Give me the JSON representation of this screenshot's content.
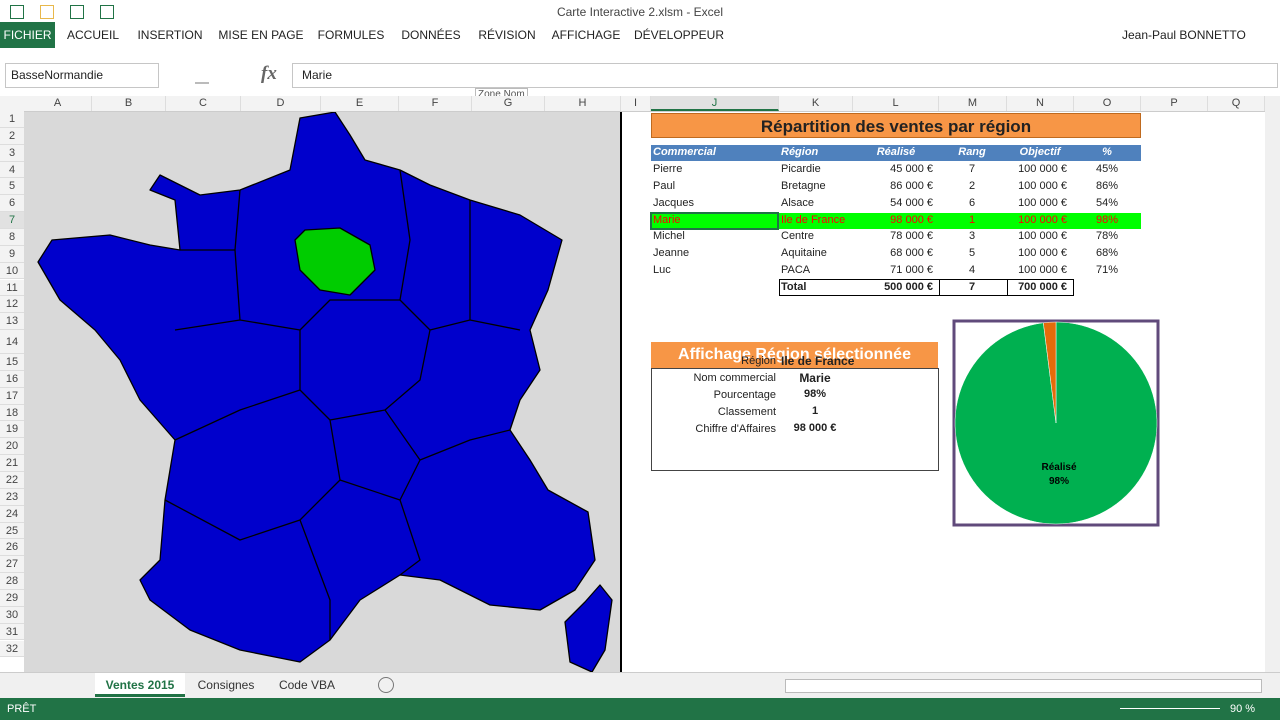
{
  "window": {
    "title": "Carte Interactive 2.xlsm - Excel",
    "user": "Jean-Paul BONNETTO"
  },
  "ribbon_tabs": [
    "FICHIER",
    "ACCUEIL",
    "INSERTION",
    "MISE EN PAGE",
    "FORMULES",
    "DONNÉES",
    "RÉVISION",
    "AFFICHAGE",
    "DÉVELOPPEUR"
  ],
  "formula_bar": {
    "name_box": "BasseNormandie",
    "fx": "fx",
    "content": "Marie",
    "tooltip": "Zone Nom"
  },
  "columns": [
    "A",
    "B",
    "C",
    "D",
    "E",
    "F",
    "G",
    "H",
    "I",
    "J",
    "K",
    "L",
    "M",
    "N",
    "O",
    "P",
    "Q"
  ],
  "rows": [
    1,
    2,
    3,
    4,
    5,
    6,
    7,
    8,
    9,
    10,
    11,
    12,
    13,
    14,
    15,
    16,
    17,
    18,
    19,
    20,
    21,
    22,
    23,
    24,
    25,
    26,
    27,
    28,
    29,
    30,
    31,
    32
  ],
  "sales_table": {
    "title": "Répartition des ventes par région",
    "header": [
      "Commercial",
      "Région",
      "Réalisé",
      "Rang",
      "Objectif",
      "%"
    ],
    "rows": [
      [
        "Pierre",
        "Picardie",
        "45 000 €",
        "7",
        "100 000 €",
        "45%"
      ],
      [
        "Paul",
        "Bretagne",
        "86 000 €",
        "2",
        "100 000 €",
        "86%"
      ],
      [
        "Jacques",
        "Alsace",
        "54 000 €",
        "6",
        "100 000 €",
        "54%"
      ],
      [
        "Marie",
        "Ile de France",
        "98 000 €",
        "1",
        "100 000 €",
        "98%"
      ],
      [
        "Michel",
        "Centre",
        "78 000 €",
        "3",
        "100 000 €",
        "78%"
      ],
      [
        "Jeanne",
        "Aquitaine",
        "68 000 €",
        "5",
        "100 000 €",
        "68%"
      ],
      [
        "Luc",
        "PACA",
        "71 000 €",
        "4",
        "100 000 €",
        "71%"
      ]
    ],
    "total": [
      "Total",
      "500 000 €",
      "7",
      "700 000 €"
    ]
  },
  "summary": {
    "title": "Affichage Région sélectionnée",
    "rows": [
      [
        "Région",
        "Ile de France"
      ],
      [
        "Nom commercial",
        "Marie"
      ],
      [
        "Pourcentage",
        "98%"
      ],
      [
        "Classement",
        "1"
      ],
      [
        "Chiffre d'Affaires",
        "98 000 €"
      ]
    ]
  },
  "chart": {
    "type": "pie",
    "categories": [
      "Réalisé",
      null
    ],
    "values": [
      98,
      2
    ],
    "value_labels": [
      "98%",
      null
    ],
    "colors": [
      "#00b050",
      "#e46c0a"
    ]
  },
  "sheet_tabs": [
    "Ventes 2015",
    "Consignes",
    "Code VBA"
  ],
  "status": {
    "mode": "PRÊT",
    "zoom": "90 %"
  }
}
